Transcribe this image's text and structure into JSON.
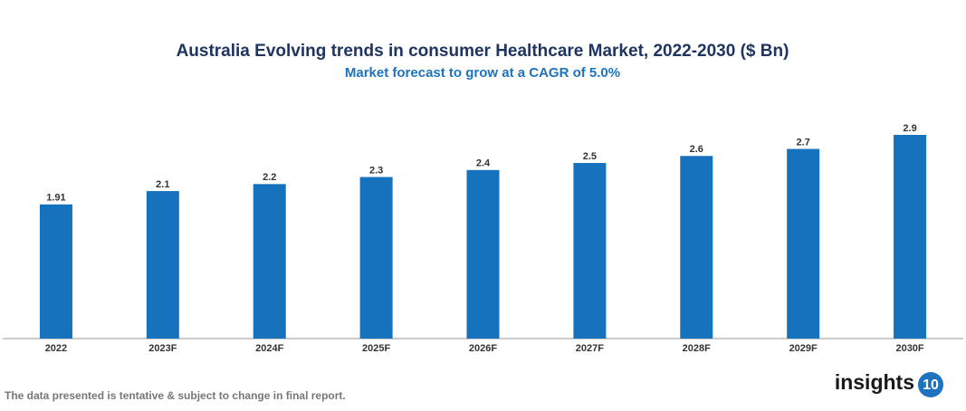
{
  "chart_data": {
    "type": "bar",
    "title": "Australia Evolving trends in consumer Healthcare Market, 2022-2030 ($ Bn)",
    "subtitle": "Market forecast to grow at a CAGR of 5.0%",
    "categories": [
      "2022",
      "2023F",
      "2024F",
      "2025F",
      "2026F",
      "2027F",
      "2028F",
      "2029F",
      "2030F"
    ],
    "values": [
      1.91,
      2.1,
      2.2,
      2.3,
      2.4,
      2.5,
      2.6,
      2.7,
      2.9
    ],
    "color": "#1672bd"
  },
  "footnote": "The data presented is tentative & subject to change in final report.",
  "logo": {
    "text": "insights",
    "badge": "10"
  }
}
